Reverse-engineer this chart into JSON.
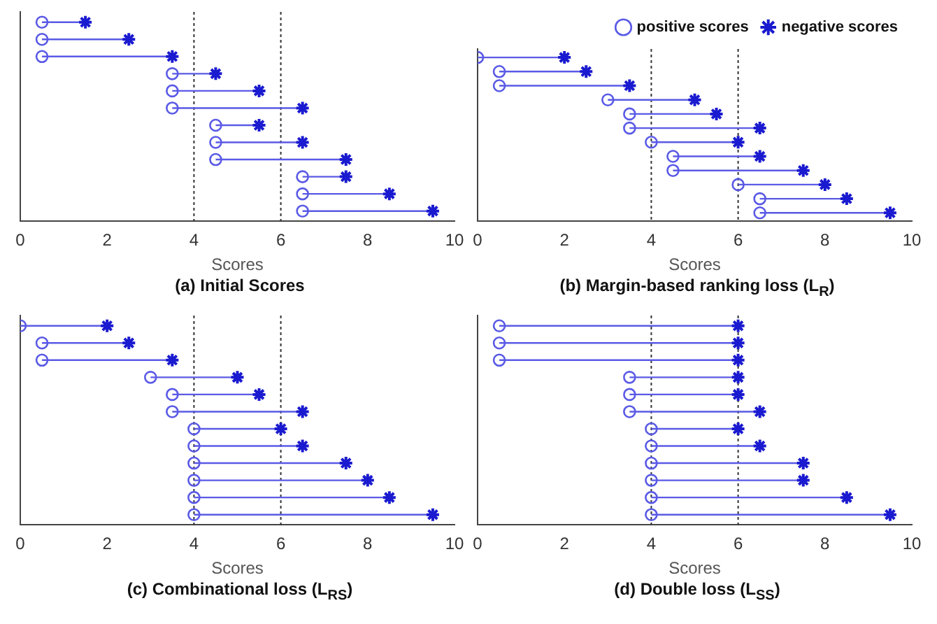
{
  "chart_data": [
    {
      "type": "scatter",
      "title": "(a) Initial Scores",
      "xlabel": "Scores",
      "orientation": "horizontal",
      "categories": [
        null,
        null,
        null,
        null,
        null,
        null,
        null,
        null,
        null,
        null,
        null,
        null
      ],
      "series": [
        {
          "color": "#5a5ae6",
          "marker": "circle",
          "values": [
            0.5,
            0.5,
            0.5,
            3.5,
            3.5,
            3.5,
            4.5,
            4.5,
            4.5,
            6.5,
            6.5,
            6.5
          ]
        },
        {
          "color": "#1a1ad0",
          "marker": "cross",
          "values": [
            1.5,
            2.5,
            3.5,
            4.5,
            5.5,
            6.5,
            5.5,
            6.5,
            7.5,
            7.5,
            8.5,
            9.5
          ]
        }
      ],
      "xlim": [
        0,
        10
      ],
      "xticks": [
        0,
        2,
        4,
        6,
        8,
        10
      ],
      "tick_labels": "x",
      "legend": false,
      "ref_lines": [
        {
          "axis": "x",
          "value": 4,
          "color": "#333333",
          "line_style": "dotted"
        },
        {
          "axis": "x",
          "value": 6,
          "color": "#333333",
          "line_style": "dotted"
        }
      ]
    },
    {
      "type": "scatter",
      "title": "(b) Margin-based ranking loss (L$_{R}$)",
      "xlabel": "Scores",
      "orientation": "horizontal",
      "categories": [
        null,
        null,
        null,
        null,
        null,
        null,
        null,
        null,
        null,
        null,
        null,
        null
      ],
      "series": [
        {
          "name": "positive scores",
          "color": "#5a5ae6",
          "marker": "circle",
          "values": [
            0,
            0.5,
            0.5,
            3,
            3.5,
            3.5,
            4,
            4.5,
            4.5,
            6,
            6.5,
            6.5
          ]
        },
        {
          "name": "negative scores",
          "color": "#1a1ad0",
          "marker": "cross",
          "values": [
            2,
            2.5,
            3.5,
            5,
            5.5,
            6.5,
            6,
            6.5,
            7.5,
            8,
            8.5,
            9.5
          ]
        }
      ],
      "xlim": [
        0,
        10
      ],
      "xticks": [
        0,
        2,
        4,
        6,
        8,
        10
      ],
      "tick_labels": "x",
      "legend": "top right",
      "ref_lines": [
        {
          "axis": "x",
          "value": 4,
          "color": "#333333",
          "line_style": "dotted"
        },
        {
          "axis": "x",
          "value": 6,
          "color": "#333333",
          "line_style": "dotted"
        }
      ]
    },
    {
      "type": "scatter",
      "title": "(c) Combinational loss (L$_{RS}$)",
      "xlabel": "Scores",
      "orientation": "horizontal",
      "categories": [
        null,
        null,
        null,
        null,
        null,
        null,
        null,
        null,
        null,
        null,
        null,
        null
      ],
      "series": [
        {
          "color": "#5a5ae6",
          "marker": "circle",
          "values": [
            0,
            0.5,
            0.5,
            3,
            3.5,
            3.5,
            4,
            4,
            4,
            4,
            4,
            4
          ]
        },
        {
          "color": "#1a1ad0",
          "marker": "cross",
          "values": [
            2,
            2.5,
            3.5,
            5,
            5.5,
            6.5,
            6,
            6.5,
            7.5,
            8,
            8.5,
            9.5
          ]
        }
      ],
      "xlim": [
        0,
        10
      ],
      "xticks": [
        0,
        2,
        4,
        6,
        8,
        10
      ],
      "tick_labels": "x",
      "legend": false,
      "ref_lines": [
        {
          "axis": "x",
          "value": 4,
          "color": "#333333",
          "line_style": "dotted"
        },
        {
          "axis": "x",
          "value": 6,
          "color": "#333333",
          "line_style": "dotted"
        }
      ]
    },
    {
      "type": "scatter",
      "title": "(d) Double loss (L$_{SS}$)",
      "xlabel": "Scores",
      "orientation": "horizontal",
      "categories": [
        null,
        null,
        null,
        null,
        null,
        null,
        null,
        null,
        null,
        null,
        null,
        null
      ],
      "series": [
        {
          "color": "#5a5ae6",
          "marker": "circle",
          "values": [
            0.5,
            0.5,
            0.5,
            3.5,
            3.5,
            3.5,
            4,
            4,
            4,
            4,
            4,
            4
          ]
        },
        {
          "color": "#1a1ad0",
          "marker": "cross",
          "values": [
            6,
            6,
            6,
            6,
            6,
            6.5,
            6,
            6.5,
            7.5,
            7.5,
            8.5,
            9.5
          ]
        }
      ],
      "xlim": [
        0,
        10
      ],
      "xticks": [
        0,
        2,
        4,
        6,
        8,
        10
      ],
      "tick_labels": "x",
      "legend": false,
      "ref_lines": [
        {
          "axis": "x",
          "value": 4,
          "color": "#333333",
          "line_style": "dotted"
        },
        {
          "axis": "x",
          "value": 6,
          "color": "#333333",
          "line_style": "dotted"
        }
      ]
    }
  ]
}
